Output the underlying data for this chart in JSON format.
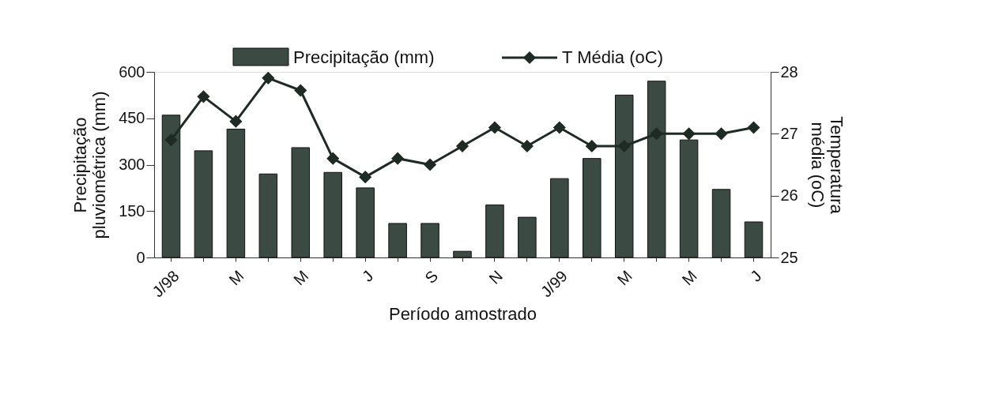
{
  "chart_data": {
    "type": "bar",
    "xlabel": "Período amostrado",
    "ylabel": "Precipitação pluviométrica (mm)",
    "y2label": "Temperatura média (oC)",
    "categories": [
      "J/98",
      null,
      "M",
      null,
      "M",
      null,
      "J",
      null,
      "S",
      null,
      "N",
      null,
      "J/99",
      null,
      "M",
      null,
      "M",
      null,
      "J"
    ],
    "series": [
      {
        "name": "Precipitação (mm)",
        "color": "#3b4a42",
        "values": [
          460,
          345,
          415,
          270,
          355,
          275,
          225,
          110,
          110,
          20,
          170,
          130,
          255,
          320,
          525,
          570,
          380,
          220,
          115
        ]
      },
      {
        "name": "T Média (oC)",
        "type": "line",
        "axis": "y2",
        "color": "#1e2a24",
        "marker": "diamond",
        "values": [
          26.9,
          27.6,
          27.2,
          27.9,
          27.7,
          26.6,
          26.3,
          26.6,
          26.5,
          26.8,
          27.1,
          26.8,
          27.1,
          26.8,
          26.8,
          27.0,
          27.0,
          27.0,
          27.1
        ]
      }
    ],
    "ylim": [
      0,
      600
    ],
    "yticks": [
      0,
      150,
      300,
      450,
      600
    ],
    "y2lim": [
      25,
      28
    ],
    "y2ticks": [
      25,
      26,
      27,
      28
    ],
    "legend": "top",
    "grid": false
  }
}
